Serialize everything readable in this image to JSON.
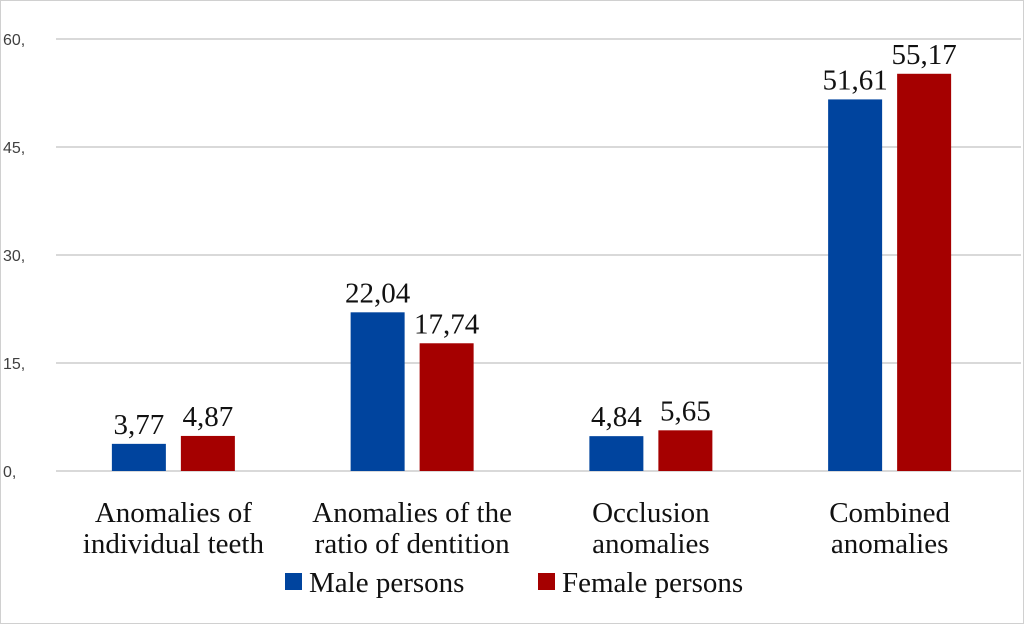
{
  "chart_data": {
    "type": "bar",
    "title": "",
    "xlabel": "",
    "ylabel": "",
    "categories": [
      [
        "Anomalies of",
        "individual teeth"
      ],
      [
        "Anomalies of the",
        "ratio of dentition"
      ],
      [
        "Occlusion",
        "anomalies"
      ],
      [
        "Combined",
        "anomalies"
      ]
    ],
    "series": [
      {
        "name": "Male persons",
        "color": "#00449e",
        "values": [
          3.77,
          22.04,
          4.84,
          51.61
        ],
        "labels": [
          "3,77",
          "22,04",
          "4,84",
          "51,61"
        ]
      },
      {
        "name": "Female persons",
        "color": "#a50000",
        "values": [
          4.87,
          17.74,
          5.65,
          55.17
        ],
        "labels": [
          "4,87",
          "17,74",
          "5,65",
          "55,17"
        ]
      }
    ],
    "ylim": [
      0,
      60
    ],
    "yticks": [
      0,
      15,
      30,
      45,
      60
    ],
    "ytick_labels": [
      "0,",
      "15,",
      "30,",
      "45,",
      "60,"
    ],
    "grid": true,
    "legend": "bottom"
  }
}
